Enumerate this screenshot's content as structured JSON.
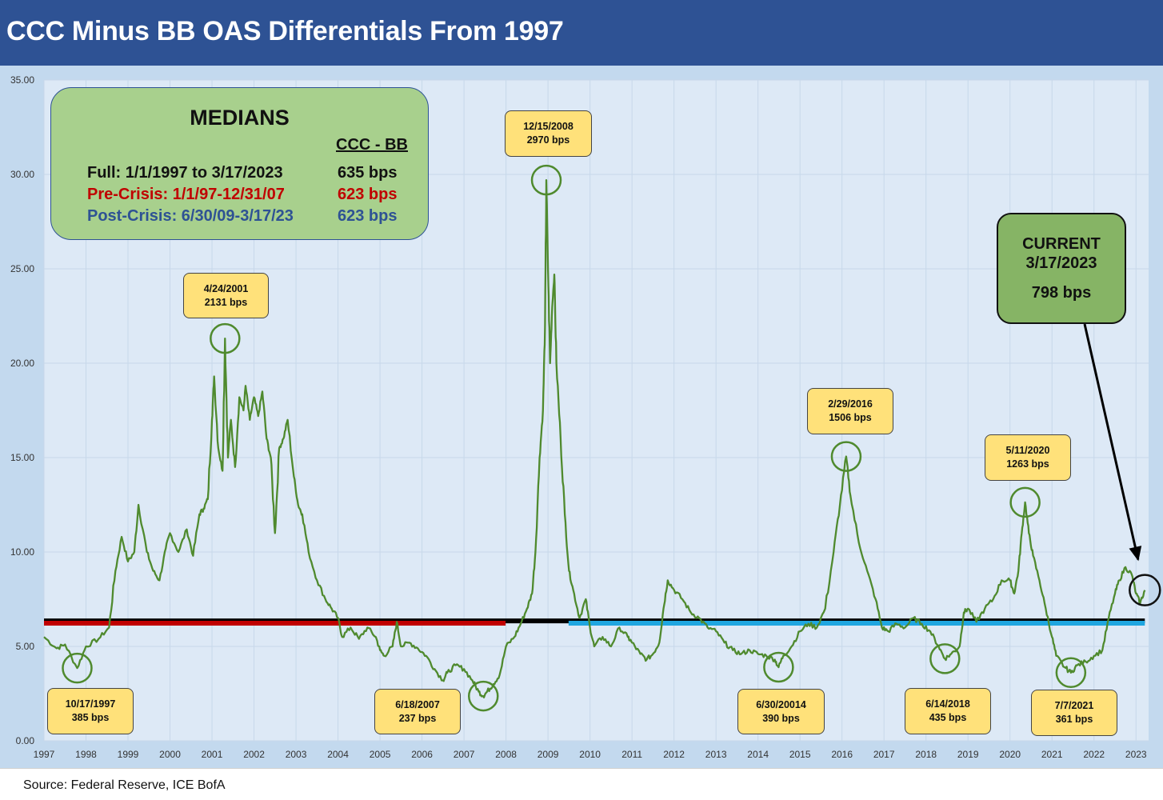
{
  "title": "CCC Minus BB OAS Differentials From 1997",
  "source": "Source: Federal Reserve, ICE BofA",
  "colors": {
    "title_bar": "#2e5294",
    "line": "#4f8a2e",
    "full_median": "#000000",
    "pre_crisis": "#c00000",
    "post_crisis": "#1fa6e0",
    "callout": "#ffe17a",
    "medians_box": "#a8d08d",
    "current_box": "#86b465"
  },
  "medians": {
    "title": "MEDIANS",
    "column_header": "CCC - BB",
    "rows": [
      {
        "label": "Full: 1/1/1997 to 3/17/2023",
        "value": "635 bps",
        "color": "#111111"
      },
      {
        "label": "Pre-Crisis: 1/1/97-12/31/07",
        "value": "623 bps",
        "color": "#c00000"
      },
      {
        "label": "Post-Crisis: 6/30/09-3/17/23",
        "value": "623 bps",
        "color": "#2e5294"
      }
    ]
  },
  "current": {
    "line1": "CURRENT",
    "line2": "3/17/2023",
    "value": "798 bps"
  },
  "annotations": [
    {
      "date": "10/17/1997",
      "value": "385 bps"
    },
    {
      "date": "4/24/2001",
      "value": "2131 bps"
    },
    {
      "date": "6/18/2007",
      "value": "237 bps"
    },
    {
      "date": "12/15/2008",
      "value": "2970 bps"
    },
    {
      "date": "6/30/20014",
      "value": "390 bps"
    },
    {
      "date": "2/29/2016",
      "value": "1506 bps"
    },
    {
      "date": "6/14/2018",
      "value": "435 bps"
    },
    {
      "date": "5/11/2020",
      "value": "1263 bps"
    },
    {
      "date": "7/7/2021",
      "value": "361 bps"
    }
  ],
  "chart_data": {
    "type": "line",
    "title": "CCC Minus BB OAS Differentials From 1997",
    "ylim": [
      0,
      35
    ],
    "xlim": [
      1997,
      2023.3
    ],
    "yticks": [
      "0.00",
      "5.00",
      "10.00",
      "15.00",
      "20.00",
      "25.00",
      "30.00",
      "35.00"
    ],
    "xticks": [
      "1997",
      "1998",
      "1999",
      "2000",
      "2001",
      "2002",
      "2003",
      "2004",
      "2005",
      "2006",
      "2007",
      "2008",
      "2009",
      "2010",
      "2011",
      "2012",
      "2013",
      "2014",
      "2015",
      "2016",
      "2017",
      "2018",
      "2019",
      "2020",
      "2021",
      "2022",
      "2023"
    ],
    "grid": true,
    "series": [
      {
        "values": [
          [
            1997.0,
            5.5
          ],
          [
            1997.3,
            4.9
          ],
          [
            1997.5,
            5.1
          ],
          [
            1997.79,
            3.85
          ],
          [
            1998.0,
            5.0
          ],
          [
            1998.3,
            5.4
          ],
          [
            1998.55,
            6.0
          ],
          [
            1998.7,
            9.0
          ],
          [
            1998.85,
            10.8
          ],
          [
            1999.0,
            9.5
          ],
          [
            1999.15,
            10.0
          ],
          [
            1999.25,
            12.5
          ],
          [
            1999.45,
            10.0
          ],
          [
            1999.6,
            9.0
          ],
          [
            1999.75,
            8.5
          ],
          [
            1999.9,
            10.2
          ],
          [
            2000.0,
            11.0
          ],
          [
            2000.2,
            10.0
          ],
          [
            2000.4,
            11.2
          ],
          [
            2000.55,
            9.8
          ],
          [
            2000.7,
            12.0
          ],
          [
            2000.8,
            12.3
          ],
          [
            2000.9,
            12.8
          ],
          [
            2001.0,
            17.0
          ],
          [
            2001.05,
            19.3
          ],
          [
            2001.15,
            15.5
          ],
          [
            2001.25,
            14.3
          ],
          [
            2001.31,
            21.31
          ],
          [
            2001.38,
            15.0
          ],
          [
            2001.45,
            17.0
          ],
          [
            2001.55,
            14.5
          ],
          [
            2001.65,
            18.2
          ],
          [
            2001.75,
            17.5
          ],
          [
            2001.8,
            18.8
          ],
          [
            2001.9,
            17.0
          ],
          [
            2002.0,
            18.2
          ],
          [
            2002.1,
            17.2
          ],
          [
            2002.2,
            18.5
          ],
          [
            2002.3,
            16.0
          ],
          [
            2002.4,
            15.0
          ],
          [
            2002.5,
            11.0
          ],
          [
            2002.6,
            15.5
          ],
          [
            2002.7,
            16.0
          ],
          [
            2002.8,
            17.0
          ],
          [
            2002.95,
            14.0
          ],
          [
            2003.05,
            12.5
          ],
          [
            2003.15,
            12.0
          ],
          [
            2003.3,
            10.0
          ],
          [
            2003.5,
            8.5
          ],
          [
            2003.7,
            7.5
          ],
          [
            2003.85,
            7.0
          ],
          [
            2004.0,
            6.5
          ],
          [
            2004.1,
            5.5
          ],
          [
            2004.3,
            6.0
          ],
          [
            2004.5,
            5.4
          ],
          [
            2004.7,
            6.0
          ],
          [
            2004.9,
            5.5
          ],
          [
            2005.0,
            4.8
          ],
          [
            2005.1,
            4.5
          ],
          [
            2005.3,
            5.0
          ],
          [
            2005.4,
            6.3
          ],
          [
            2005.5,
            5.0
          ],
          [
            2005.7,
            5.2
          ],
          [
            2005.9,
            4.9
          ],
          [
            2006.1,
            4.5
          ],
          [
            2006.3,
            3.8
          ],
          [
            2006.5,
            3.2
          ],
          [
            2006.6,
            3.6
          ],
          [
            2006.8,
            4.0
          ],
          [
            2007.0,
            3.8
          ],
          [
            2007.2,
            3.2
          ],
          [
            2007.35,
            2.6
          ],
          [
            2007.46,
            2.37
          ],
          [
            2007.55,
            2.6
          ],
          [
            2007.7,
            3.0
          ],
          [
            2007.85,
            3.5
          ],
          [
            2008.0,
            5.0
          ],
          [
            2008.2,
            5.5
          ],
          [
            2008.35,
            6.2
          ],
          [
            2008.5,
            7.0
          ],
          [
            2008.62,
            7.8
          ],
          [
            2008.7,
            10.0
          ],
          [
            2008.8,
            15.0
          ],
          [
            2008.88,
            17.5
          ],
          [
            2008.93,
            22.0
          ],
          [
            2008.96,
            29.7
          ],
          [
            2009.0,
            25.0
          ],
          [
            2009.05,
            20.0
          ],
          [
            2009.1,
            23.0
          ],
          [
            2009.15,
            24.7
          ],
          [
            2009.2,
            20.0
          ],
          [
            2009.3,
            16.0
          ],
          [
            2009.4,
            12.0
          ],
          [
            2009.5,
            9.0
          ],
          [
            2009.6,
            8.0
          ],
          [
            2009.75,
            6.5
          ],
          [
            2009.9,
            7.5
          ],
          [
            2010.0,
            6.0
          ],
          [
            2010.1,
            5.0
          ],
          [
            2010.3,
            5.5
          ],
          [
            2010.5,
            5.0
          ],
          [
            2010.7,
            6.0
          ],
          [
            2010.9,
            5.5
          ],
          [
            2011.0,
            5.2
          ],
          [
            2011.2,
            4.6
          ],
          [
            2011.35,
            4.3
          ],
          [
            2011.5,
            4.6
          ],
          [
            2011.65,
            5.2
          ],
          [
            2011.75,
            7.0
          ],
          [
            2011.85,
            8.5
          ],
          [
            2012.0,
            8.0
          ],
          [
            2012.2,
            7.5
          ],
          [
            2012.4,
            6.8
          ],
          [
            2012.6,
            6.5
          ],
          [
            2012.8,
            6.0
          ],
          [
            2013.0,
            5.8
          ],
          [
            2013.2,
            5.2
          ],
          [
            2013.4,
            4.8
          ],
          [
            2013.6,
            4.6
          ],
          [
            2013.8,
            4.8
          ],
          [
            2014.0,
            4.6
          ],
          [
            2014.2,
            4.5
          ],
          [
            2014.4,
            4.3
          ],
          [
            2014.49,
            3.9
          ],
          [
            2014.6,
            4.5
          ],
          [
            2014.8,
            5.0
          ],
          [
            2015.0,
            5.8
          ],
          [
            2015.2,
            6.2
          ],
          [
            2015.4,
            6.0
          ],
          [
            2015.6,
            7.0
          ],
          [
            2015.8,
            10.0
          ],
          [
            2015.95,
            12.5
          ],
          [
            2016.1,
            15.06
          ],
          [
            2016.2,
            13.0
          ],
          [
            2016.4,
            10.5
          ],
          [
            2016.6,
            9.0
          ],
          [
            2016.8,
            7.5
          ],
          [
            2016.95,
            6.0
          ],
          [
            2017.1,
            5.8
          ],
          [
            2017.3,
            6.2
          ],
          [
            2017.5,
            6.0
          ],
          [
            2017.7,
            6.5
          ],
          [
            2017.9,
            6.2
          ],
          [
            2018.1,
            5.8
          ],
          [
            2018.3,
            5.0
          ],
          [
            2018.45,
            4.35
          ],
          [
            2018.6,
            4.6
          ],
          [
            2018.8,
            5.0
          ],
          [
            2018.9,
            6.8
          ],
          [
            2019.0,
            7.0
          ],
          [
            2019.2,
            6.3
          ],
          [
            2019.4,
            7.0
          ],
          [
            2019.6,
            7.5
          ],
          [
            2019.8,
            8.5
          ],
          [
            2020.0,
            8.5
          ],
          [
            2020.1,
            7.8
          ],
          [
            2020.2,
            9.0
          ],
          [
            2020.28,
            11.0
          ],
          [
            2020.36,
            12.63
          ],
          [
            2020.45,
            11.0
          ],
          [
            2020.55,
            9.8
          ],
          [
            2020.7,
            8.5
          ],
          [
            2020.85,
            7.0
          ],
          [
            2021.0,
            5.5
          ],
          [
            2021.1,
            4.5
          ],
          [
            2021.3,
            3.9
          ],
          [
            2021.45,
            3.61
          ],
          [
            2021.6,
            4.0
          ],
          [
            2021.8,
            4.2
          ],
          [
            2022.0,
            4.5
          ],
          [
            2022.2,
            4.8
          ],
          [
            2022.35,
            6.5
          ],
          [
            2022.5,
            7.8
          ],
          [
            2022.6,
            8.5
          ],
          [
            2022.75,
            9.2
          ],
          [
            2022.9,
            8.8
          ],
          [
            2023.0,
            7.8
          ],
          [
            2023.1,
            7.3
          ],
          [
            2023.21,
            7.98
          ]
        ]
      }
    ],
    "reference_lines": [
      {
        "label": "Full median",
        "y": 6.35,
        "x_range": [
          1997,
          2023.21
        ]
      },
      {
        "label": "Pre-Crisis median",
        "y": 6.23,
        "x_range": [
          1997,
          2007.99
        ]
      },
      {
        "label": "Post-Crisis median",
        "y": 6.23,
        "x_range": [
          2009.49,
          2023.21
        ]
      }
    ]
  }
}
